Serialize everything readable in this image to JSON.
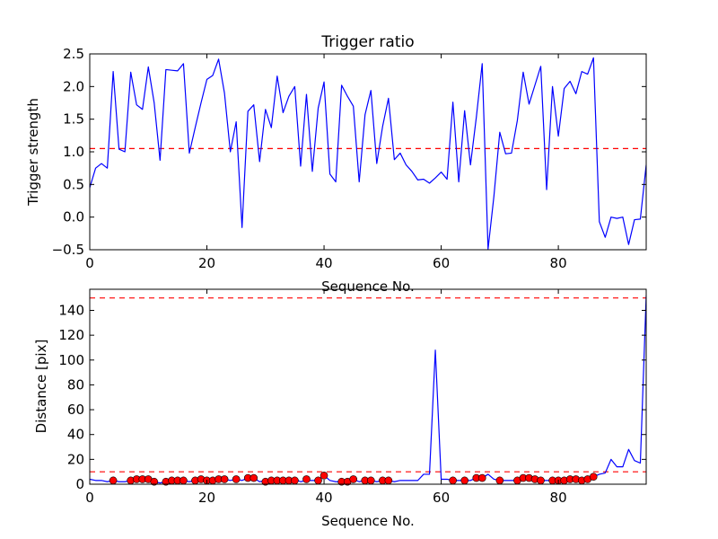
{
  "chart_data": [
    {
      "type": "line",
      "title": "Trigger ratio",
      "xlabel": "Sequence No.",
      "ylabel": "Trigger strength",
      "xlim": [
        0,
        95
      ],
      "ylim": [
        -0.5,
        2.5
      ],
      "xticks": [
        0,
        20,
        40,
        60,
        80
      ],
      "xtick_labels": [
        "0",
        "20",
        "40",
        "60",
        "80"
      ],
      "yticks": [
        -0.5,
        0.0,
        0.5,
        1.0,
        1.5,
        2.0,
        2.5
      ],
      "ytick_labels": [
        "−0.5",
        "0.0",
        "0.5",
        "1.0",
        "1.5",
        "2.0",
        "2.5"
      ],
      "grid": false,
      "threshold_lines": [
        {
          "y": 1.05,
          "color": "#ff0000",
          "style": "dashed"
        }
      ],
      "series": [
        {
          "color": "#0000ff",
          "x": [
            0,
            1,
            2,
            3,
            4,
            5,
            6,
            7,
            8,
            9,
            10,
            11,
            12,
            13,
            14,
            15,
            16,
            17,
            18,
            19,
            20,
            21,
            22,
            23,
            24,
            25,
            26,
            27,
            28,
            29,
            30,
            31,
            32,
            33,
            34,
            35,
            36,
            37,
            38,
            39,
            40,
            41,
            42,
            43,
            44,
            45,
            46,
            47,
            48,
            49,
            50,
            51,
            52,
            53,
            54,
            55,
            56,
            57,
            58,
            59,
            60,
            61,
            62,
            63,
            64,
            65,
            66,
            67,
            68,
            69,
            70,
            71,
            72,
            73,
            74,
            75,
            76,
            77,
            78,
            79,
            80,
            81,
            82,
            83,
            84,
            85,
            86,
            87,
            88,
            89,
            90,
            91,
            92,
            93,
            94,
            95
          ],
          "values": [
            0.45,
            0.75,
            0.82,
            0.75,
            2.23,
            1.04,
            1.0,
            2.22,
            1.72,
            1.65,
            2.3,
            1.75,
            0.87,
            2.26,
            2.25,
            2.24,
            2.35,
            0.98,
            1.37,
            1.75,
            2.11,
            2.17,
            2.42,
            1.9,
            1.0,
            1.46,
            -0.16,
            1.62,
            1.72,
            0.85,
            1.65,
            1.37,
            2.16,
            1.6,
            1.85,
            2.0,
            0.78,
            1.88,
            0.7,
            1.67,
            2.07,
            0.66,
            0.54,
            2.02,
            1.85,
            1.7,
            0.54,
            1.57,
            1.94,
            0.82,
            1.39,
            1.82,
            0.88,
            0.98,
            0.8,
            0.7,
            0.57,
            0.58,
            0.52,
            0.6,
            0.69,
            0.58,
            1.76,
            0.54,
            1.63,
            0.8,
            1.53,
            2.35,
            -0.49,
            0.32,
            1.3,
            0.97,
            0.98,
            1.48,
            2.22,
            1.73,
            2.02,
            2.31,
            0.42,
            2.0,
            1.24,
            1.97,
            2.08,
            1.89,
            2.23,
            2.19,
            2.44,
            -0.07,
            -0.31,
            0.0,
            -0.02,
            0.0,
            -0.42,
            -0.04,
            -0.03,
            0.8
          ]
        }
      ]
    },
    {
      "type": "line",
      "title": "",
      "xlabel": "Sequence No.",
      "ylabel": "Distance [pix]",
      "xlim": [
        0,
        95
      ],
      "ylim": [
        0,
        157
      ],
      "xticks": [
        0,
        20,
        40,
        60,
        80
      ],
      "xtick_labels": [
        "0",
        "20",
        "40",
        "60",
        "80"
      ],
      "yticks": [
        0,
        20,
        40,
        60,
        80,
        100,
        120,
        140
      ],
      "ytick_labels": [
        "0",
        "20",
        "40",
        "60",
        "80",
        "100",
        "120",
        "140"
      ],
      "grid": false,
      "threshold_lines": [
        {
          "y": 150,
          "color": "#ff0000",
          "style": "dashed"
        },
        {
          "y": 10,
          "color": "#ff0000",
          "style": "dashed"
        }
      ],
      "series": [
        {
          "color": "#0000ff",
          "x": [
            0,
            1,
            2,
            3,
            4,
            5,
            6,
            7,
            8,
            9,
            10,
            11,
            12,
            13,
            14,
            15,
            16,
            17,
            18,
            19,
            20,
            21,
            22,
            23,
            24,
            25,
            26,
            27,
            28,
            29,
            30,
            31,
            32,
            33,
            34,
            35,
            36,
            37,
            38,
            39,
            40,
            41,
            42,
            43,
            44,
            45,
            46,
            47,
            48,
            49,
            50,
            51,
            52,
            53,
            54,
            55,
            56,
            57,
            58,
            59,
            60,
            61,
            62,
            63,
            64,
            65,
            66,
            67,
            68,
            69,
            70,
            71,
            72,
            73,
            74,
            75,
            76,
            77,
            78,
            79,
            80,
            81,
            82,
            83,
            84,
            85,
            86,
            87,
            88,
            89,
            90,
            91,
            92,
            93,
            94,
            95
          ],
          "values": [
            4,
            3,
            3,
            2,
            3,
            2,
            2,
            3,
            4,
            4,
            4,
            2,
            1,
            2,
            3,
            3,
            3,
            2,
            3,
            4,
            3,
            3,
            4,
            4,
            3,
            4,
            3,
            5,
            5,
            2,
            3,
            3,
            3,
            3,
            3,
            4,
            2,
            3,
            3,
            3,
            7,
            3,
            2,
            2,
            3,
            4,
            2,
            3,
            3,
            2,
            3,
            3,
            2,
            3,
            3,
            3,
            3,
            8,
            8,
            108,
            4,
            4,
            3,
            3,
            3,
            3,
            5,
            5,
            8,
            4,
            3,
            3,
            3,
            3,
            5,
            5,
            4,
            3,
            3,
            3,
            3,
            3,
            4,
            4,
            3,
            4,
            6,
            8,
            9,
            20,
            14,
            14,
            28,
            19,
            17,
            152
          ]
        }
      ],
      "markers": {
        "color": "#ff0000",
        "x": [
          4,
          7,
          8,
          9,
          10,
          11,
          13,
          14,
          15,
          16,
          18,
          19,
          20,
          21,
          22,
          23,
          25,
          27,
          28,
          30,
          31,
          32,
          33,
          34,
          35,
          37,
          39,
          40,
          43,
          44,
          45,
          47,
          48,
          50,
          51,
          62,
          64,
          66,
          67,
          70,
          73,
          74,
          75,
          76,
          77,
          79,
          80,
          81,
          82,
          83,
          84,
          85,
          86
        ],
        "values": [
          3,
          3,
          4,
          4,
          4,
          2,
          2,
          3,
          3,
          3,
          3,
          4,
          3,
          3,
          4,
          4,
          4,
          5,
          5,
          2,
          3,
          3,
          3,
          3,
          3,
          4,
          3,
          7,
          2,
          2,
          4,
          3,
          3,
          3,
          3,
          3,
          3,
          5,
          5,
          3,
          3,
          5,
          5,
          4,
          3,
          3,
          3,
          3,
          4,
          4,
          3,
          4,
          6
        ]
      }
    }
  ]
}
